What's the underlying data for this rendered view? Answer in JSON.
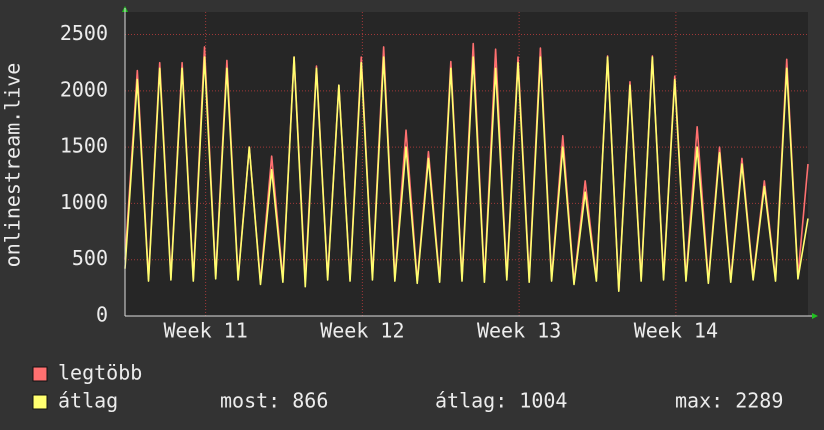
{
  "chart_data": {
    "type": "line",
    "ylabel": "onlinestream.live",
    "x": [
      0,
      0.55,
      1.05,
      1.55,
      2.05,
      2.55,
      3.05,
      3.55,
      4.05,
      4.55,
      5.05,
      5.55,
      6.05,
      6.55,
      7.05,
      7.55,
      8.05,
      8.55,
      9.05,
      9.55,
      10.05,
      10.55,
      11.05,
      11.55,
      12.05,
      12.55,
      13.05,
      13.55,
      14.05,
      14.55,
      15.05,
      15.55,
      16.05,
      16.55,
      17.05,
      17.55,
      18.05,
      18.55,
      19.05,
      19.55,
      20.05,
      20.55,
      21.05,
      21.55,
      22.05,
      22.55,
      23.05,
      23.55,
      24.05,
      24.55,
      25.05,
      25.55,
      26.05,
      26.55,
      27.05,
      27.55,
      28.05,
      28.55,
      29.05,
      29.55,
      30.05,
      30.5
    ],
    "series": [
      {
        "name": "legtöbb",
        "color": "#ff7070",
        "values": [
          500,
          2180,
          330,
          2250,
          340,
          2250,
          330,
          2390,
          350,
          2270,
          340,
          1500,
          300,
          1420,
          330,
          2300,
          320,
          2220,
          340,
          2050,
          330,
          2300,
          340,
          2390,
          330,
          1650,
          310,
          1460,
          330,
          2260,
          330,
          2420,
          320,
          2370,
          340,
          2300,
          330,
          2380,
          330,
          1600,
          300,
          1200,
          330,
          2310,
          230,
          2080,
          330,
          2310,
          340,
          2130,
          330,
          1680,
          310,
          1500,
          320,
          1400,
          340,
          1200,
          330,
          2280,
          350,
          1350
        ]
      },
      {
        "name": "átlag",
        "color": "#ffff70",
        "values": [
          420,
          2100,
          310,
          2200,
          320,
          2200,
          310,
          2300,
          330,
          2200,
          320,
          1500,
          280,
          1300,
          300,
          2300,
          260,
          2200,
          320,
          2050,
          310,
          2250,
          320,
          2300,
          310,
          1500,
          290,
          1400,
          300,
          2200,
          310,
          2300,
          300,
          2200,
          320,
          2250,
          300,
          2300,
          310,
          1500,
          280,
          1100,
          310,
          2300,
          220,
          2050,
          310,
          2300,
          320,
          2100,
          310,
          1500,
          290,
          1450,
          300,
          1350,
          320,
          1150,
          310,
          2200,
          330,
          866
        ]
      }
    ],
    "xlim": [
      0,
      30.5
    ],
    "xticks": [
      {
        "value": 3.6,
        "label": "Week 11"
      },
      {
        "value": 10.6,
        "label": "Week 12"
      },
      {
        "value": 17.6,
        "label": "Week 13"
      },
      {
        "value": 24.6,
        "label": "Week 14"
      }
    ],
    "ylim": [
      0,
      2700
    ],
    "yticks": [
      0,
      500,
      1000,
      1500,
      2000,
      2500
    ],
    "grid": true,
    "stats": [
      "most: 866",
      "átlag: 1004",
      "max: 2289"
    ]
  }
}
